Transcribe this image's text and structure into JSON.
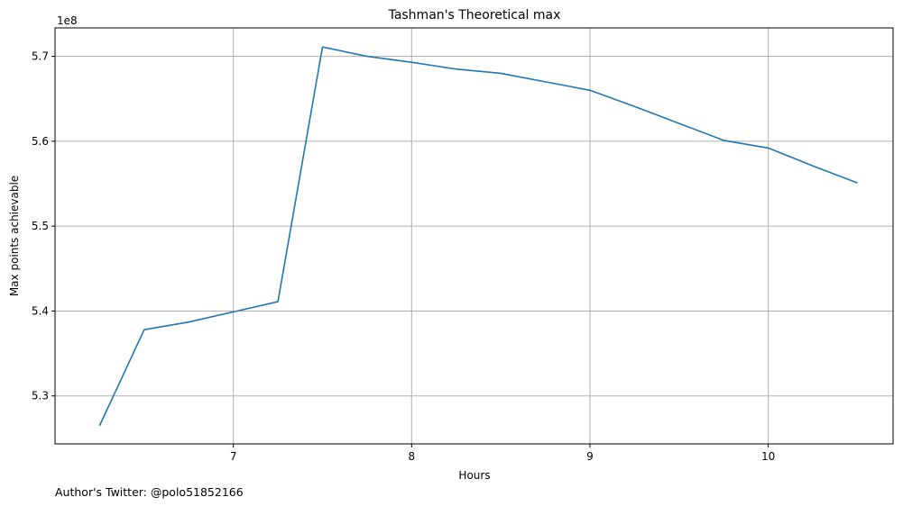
{
  "chart_data": {
    "type": "line",
    "title": "Tashman's Theoretical max",
    "xlabel": "Hours",
    "ylabel": "Max points achievable",
    "y_offset_label": "1e8",
    "footer_note": "Author's Twitter: @polo51852166",
    "xlim": [
      6.0,
      10.7
    ],
    "ylim": [
      5.2435,
      5.7335
    ],
    "x_ticks": [
      7,
      8,
      9,
      10
    ],
    "x_tick_labels": [
      "7",
      "8",
      "9",
      "10"
    ],
    "y_ticks": [
      5.3,
      5.4,
      5.5,
      5.6,
      5.7
    ],
    "y_tick_labels": [
      "5.3",
      "5.4",
      "5.5",
      "5.6",
      "5.7"
    ],
    "grid": true,
    "series": [
      {
        "color": "#1f77b4",
        "x": [
          6.25,
          6.5,
          6.75,
          7.0,
          7.25,
          7.5,
          7.75,
          8.0,
          8.25,
          8.5,
          8.75,
          9.0,
          9.25,
          9.5,
          9.75,
          10.0,
          10.25,
          10.5
        ],
        "y": [
          5.265,
          5.378,
          5.387,
          5.399,
          5.411,
          5.711,
          5.7,
          5.693,
          5.685,
          5.68,
          5.67,
          5.66,
          5.641,
          5.621,
          5.601,
          5.592,
          5.571,
          5.551
        ]
      }
    ]
  }
}
